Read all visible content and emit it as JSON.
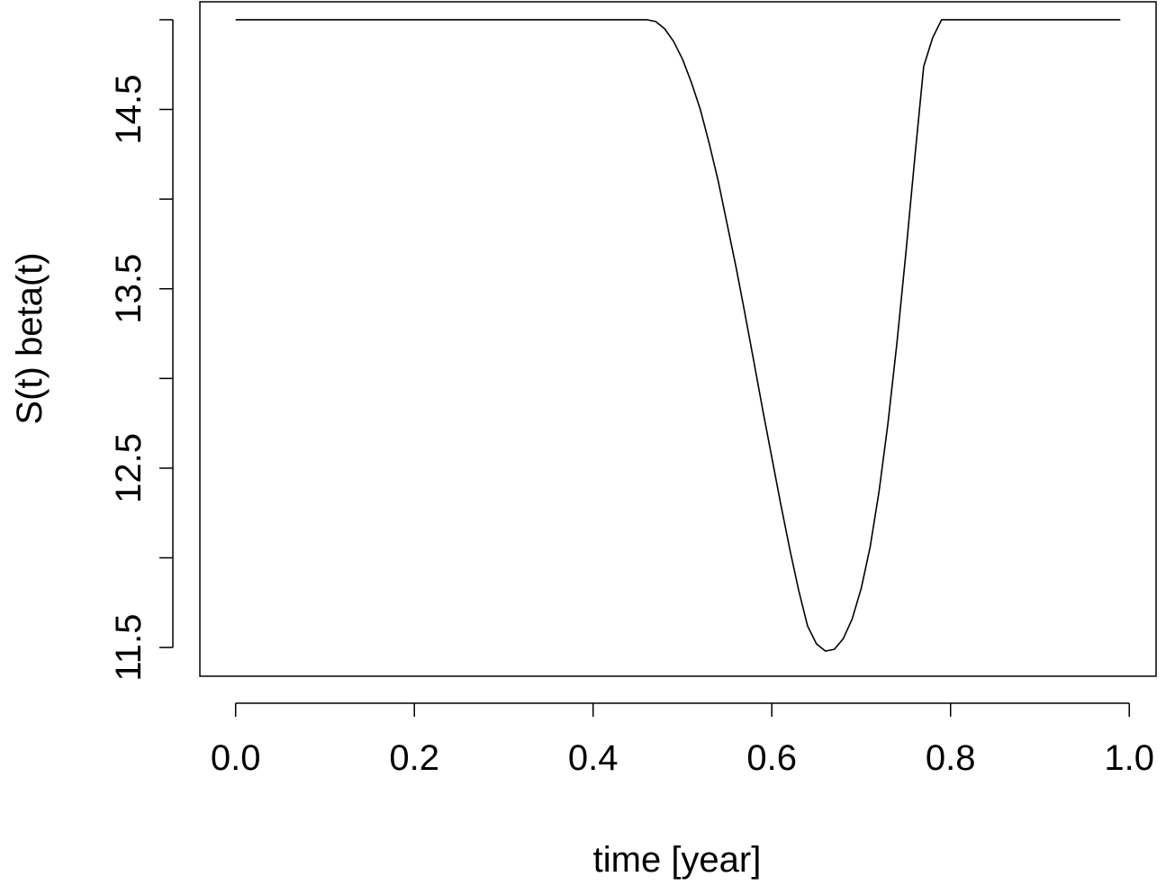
{
  "chart_data": {
    "type": "line",
    "title": "",
    "xlabel": "time [year]",
    "ylabel": "S(t) beta(t)",
    "xlim": [
      -0.04,
      1.03
    ],
    "ylim": [
      11.34,
      15.1
    ],
    "x_ticks": [
      0.0,
      0.2,
      0.4,
      0.6,
      0.8,
      1.0
    ],
    "x_tick_labels": [
      "0.0",
      "0.2",
      "0.4",
      "0.6",
      "0.8",
      "1.0"
    ],
    "y_ticks": [
      11.5,
      12.0,
      12.5,
      13.0,
      13.5,
      14.0,
      14.5,
      15.0
    ],
    "y_tick_labels": [
      "11.5",
      "",
      "12.5",
      "",
      "13.5",
      "",
      "14.5",
      ""
    ],
    "grid": false,
    "legend": "none",
    "series": [
      {
        "color": "#000000",
        "x": [
          0.0,
          0.1,
          0.2,
          0.3,
          0.4,
          0.46,
          0.47,
          0.48,
          0.49,
          0.5,
          0.51,
          0.52,
          0.53,
          0.54,
          0.55,
          0.56,
          0.57,
          0.58,
          0.59,
          0.6,
          0.61,
          0.62,
          0.63,
          0.64,
          0.65,
          0.66,
          0.67,
          0.68,
          0.69,
          0.7,
          0.71,
          0.72,
          0.73,
          0.74,
          0.75,
          0.76,
          0.77,
          0.78,
          0.79,
          0.8,
          0.81,
          0.82,
          0.83,
          0.84,
          0.9,
          0.99
        ],
        "y": [
          15.0,
          15.0,
          15.0,
          15.0,
          15.0,
          15.0,
          14.99,
          14.95,
          14.88,
          14.78,
          14.65,
          14.5,
          14.31,
          14.1,
          13.86,
          13.62,
          13.36,
          13.09,
          12.82,
          12.56,
          12.3,
          12.05,
          11.82,
          11.62,
          11.52,
          11.48,
          11.49,
          11.55,
          11.66,
          11.83,
          12.06,
          12.37,
          12.75,
          13.2,
          13.7,
          14.23,
          14.74,
          14.9,
          15.0,
          15.0,
          15.0,
          15.0,
          15.0,
          15.0,
          15.0,
          15.0
        ]
      }
    ]
  }
}
